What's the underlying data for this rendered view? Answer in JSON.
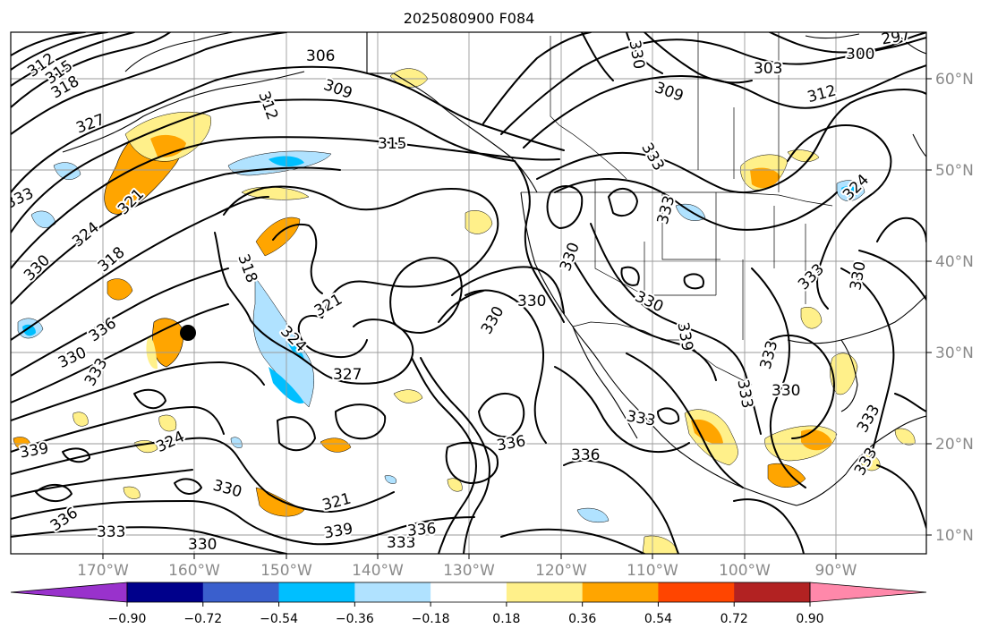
{
  "title": "2025080900 F084",
  "lon_labels": [
    "170°W",
    "160°W",
    "150°W",
    "140°W",
    "130°W",
    "120°W",
    "110°W",
    "100°W",
    "90°W"
  ],
  "lat_labels": [
    "60°N",
    "50°N",
    "40°N",
    "30°N",
    "20°N",
    "10°N"
  ],
  "colorbar": {
    "colors": [
      "#9932cc",
      "#00008b",
      "#3a5fcd",
      "#00bfff",
      "#b0e2ff",
      "#ffffff",
      "#fff08a",
      "#ffa500",
      "#ff4500",
      "#b22222",
      "#ff88aa"
    ],
    "tick_labels": [
      "−0.90",
      "−0.72",
      "−0.54",
      "−0.36",
      "−0.18",
      "0.18",
      "0.36",
      "0.54",
      "0.72",
      "0.90"
    ]
  },
  "contour_labels": [
    "312",
    "315",
    "318",
    "327",
    "333",
    "324",
    "330",
    "321",
    "318",
    "306",
    "309",
    "312",
    "315",
    "318",
    "321",
    "324",
    "327",
    "330",
    "333",
    "336",
    "339",
    "324",
    "330",
    "321",
    "336",
    "333",
    "330",
    "339",
    "333",
    "336",
    "303",
    "300",
    "297",
    "312",
    "309",
    "330",
    "333",
    "333",
    "330",
    "339",
    "330",
    "333",
    "330",
    "333",
    "336",
    "330",
    "333",
    "333",
    "330",
    "333",
    "324"
  ],
  "marker": {
    "label": "black-dot"
  }
}
